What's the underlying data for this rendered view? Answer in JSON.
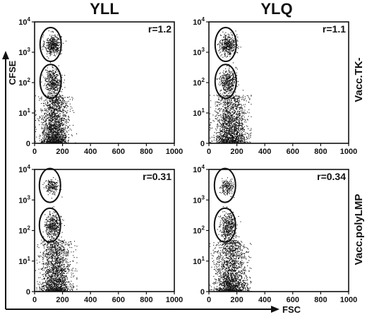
{
  "chart_data": {
    "type": "scatter",
    "columns": [
      "YLL",
      "YLQ"
    ],
    "rows": [
      "Vacc.TK-",
      "Vacc.polyLMP"
    ],
    "ylabel": "CFSE",
    "xlabel": "FSC",
    "xlim": [
      0,
      1000
    ],
    "ylim": [
      1,
      10000
    ],
    "y_scale": "log",
    "x_ticks": [
      "0",
      "200",
      "400",
      "600",
      "800",
      "1000"
    ],
    "y_ticks": [
      {
        "base": "0",
        "exp": ""
      },
      {
        "base": "10",
        "exp": "1"
      },
      {
        "base": "10",
        "exp": "2"
      },
      {
        "base": "10",
        "exp": "3"
      },
      {
        "base": "10",
        "exp": "4"
      }
    ],
    "panels": [
      {
        "column": "YLL",
        "row": "Vacc.TK-",
        "r_label": "r=1.2",
        "gates": [
          {
            "x": 115,
            "y_center": 1800
          },
          {
            "x": 115,
            "y_center": 110
          }
        ],
        "populations": [
          {
            "x": [
              70,
              190
            ],
            "y": [
              800,
              4000
            ],
            "density": "high"
          },
          {
            "x": [
              70,
              190
            ],
            "y": [
              40,
              300
            ],
            "density": "high"
          },
          {
            "x": [
              40,
              240
            ],
            "y": [
              1,
              40
            ],
            "density": "very high"
          }
        ]
      },
      {
        "column": "YLQ",
        "row": "Vacc.TK-",
        "r_label": "r=1.1",
        "gates": [
          {
            "x": 120,
            "y_center": 1800
          },
          {
            "x": 120,
            "y_center": 110
          }
        ],
        "populations": [
          {
            "x": [
              75,
              195
            ],
            "y": [
              800,
              4000
            ],
            "density": "high"
          },
          {
            "x": [
              75,
              195
            ],
            "y": [
              40,
              300
            ],
            "density": "high"
          },
          {
            "x": [
              40,
              270
            ],
            "y": [
              1,
              40
            ],
            "density": "very high"
          }
        ]
      },
      {
        "column": "YLL",
        "row": "Vacc.polyLMP",
        "r_label": "r=0.31",
        "gates": [
          {
            "x": 110,
            "y_center": 3000
          },
          {
            "x": 110,
            "y_center": 150
          }
        ],
        "populations": [
          {
            "x": [
              75,
              170
            ],
            "y": [
              1500,
              5000
            ],
            "density": "medium"
          },
          {
            "x": [
              70,
              190
            ],
            "y": [
              50,
              400
            ],
            "density": "high"
          },
          {
            "x": [
              40,
              260
            ],
            "y": [
              1,
              50
            ],
            "density": "very high"
          }
        ]
      },
      {
        "column": "YLQ",
        "row": "Vacc.polyLMP",
        "r_label": "r=0.34",
        "gates": [
          {
            "x": 115,
            "y_center": 3000
          },
          {
            "x": 115,
            "y_center": 150
          }
        ],
        "populations": [
          {
            "x": [
              80,
              175
            ],
            "y": [
              1500,
              5000
            ],
            "density": "medium"
          },
          {
            "x": [
              75,
              195
            ],
            "y": [
              50,
              400
            ],
            "density": "high"
          },
          {
            "x": [
              40,
              270
            ],
            "y": [
              1,
              50
            ],
            "density": "very high"
          }
        ]
      }
    ],
    "colors": {
      "ink": "#111111",
      "background": "#ffffff"
    }
  }
}
